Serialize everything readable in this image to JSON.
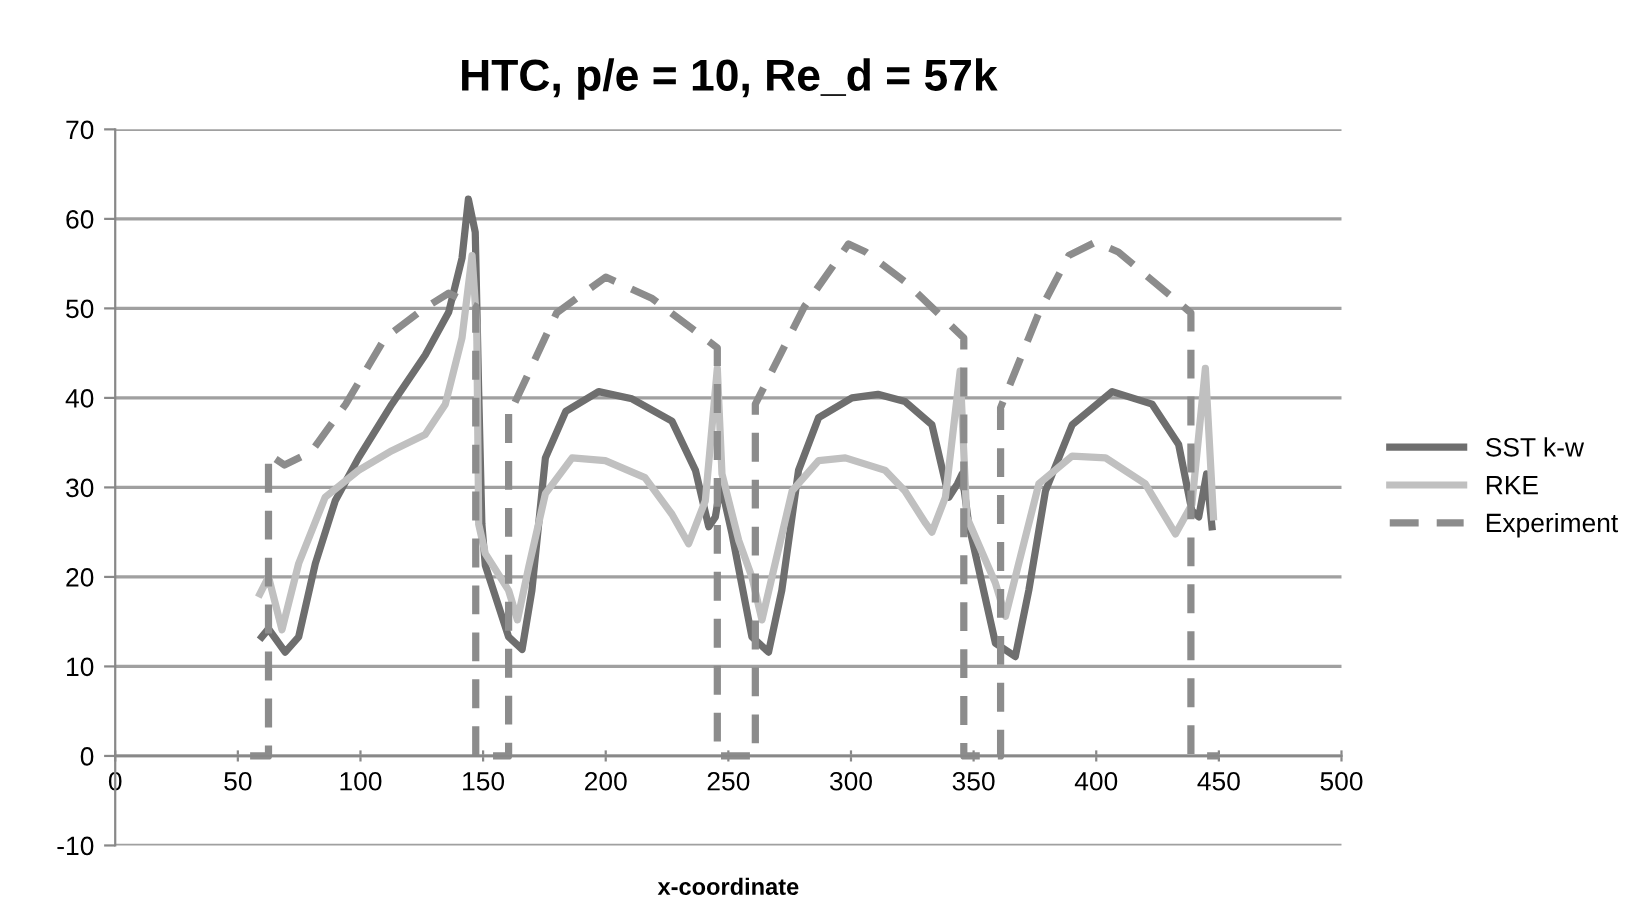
{
  "chart_data": {
    "type": "line",
    "title": "HTC, p/e = 10, Re_d = 57k",
    "xlabel": "x-coordinate",
    "xlim": [
      0,
      500
    ],
    "xticks": [
      0,
      50,
      100,
      150,
      200,
      250,
      300,
      350,
      400,
      450,
      500
    ],
    "ylim": [
      -10,
      70
    ],
    "yticks": [
      -10,
      0,
      10,
      20,
      30,
      40,
      50,
      60,
      70
    ],
    "grid": "y",
    "legend": "right",
    "marker": "none",
    "series": [
      {
        "name": "SST k-w",
        "color": "#6e6e6e",
        "line_style": "solid",
        "x": [
          59.8,
          62.5,
          69.3,
          74.8,
          81.6,
          89.7,
          99.2,
          112.8,
          126.4,
          136,
          141.4,
          144,
          146.8,
          148.2,
          149.5,
          150.9,
          160.4,
          165.9,
          169.9,
          175.4,
          183.7,
          197.1,
          210.7,
          227,
          236.6,
          242,
          244.7,
          246.9,
          251.5,
          259.6,
          266.4,
          271.8,
          278.6,
          286.8,
          300.4,
          311,
          322,
          333,
          339.9,
          343.4,
          345.3,
          348,
          358.9,
          367,
          372.5,
          379.3,
          390.2,
          406.5,
          422.8,
          433.6,
          439,
          441.8,
          445,
          447.2
        ],
        "values": [
          13.3,
          14.2,
          11.6,
          13.3,
          21.5,
          28.5,
          33.3,
          39.3,
          44.8,
          49.6,
          55.6,
          62.2,
          58.5,
          40.7,
          25.9,
          21.3,
          13.3,
          11.9,
          18.5,
          33.3,
          38.5,
          40.7,
          39.9,
          37.4,
          31.9,
          25.6,
          26.7,
          30.4,
          24.8,
          13.3,
          11.6,
          18.5,
          31.9,
          37.8,
          40,
          40.4,
          39.6,
          37,
          28.9,
          30.4,
          31.5,
          25.9,
          12.6,
          11.1,
          18.5,
          29.6,
          37,
          40.7,
          39.3,
          34.8,
          27.4,
          26.7,
          31.5,
          25.6
        ]
      },
      {
        "name": "RKE",
        "color": "#c0c0c0",
        "line_style": "solid",
        "x": [
          59,
          62.5,
          68,
          74.8,
          85.6,
          99.2,
          112.8,
          126.4,
          134.6,
          141.4,
          145.5,
          147.4,
          148.2,
          150.9,
          160.4,
          164,
          168.6,
          175.4,
          186.3,
          199.8,
          216,
          227,
          233.8,
          240.6,
          245.5,
          247.4,
          254.2,
          259.6,
          263.7,
          267.8,
          276,
          286.8,
          297.7,
          314,
          322,
          330.4,
          333,
          338.5,
          344.5,
          347.2,
          358.9,
          363,
          368.4,
          376.6,
          390.2,
          403.8,
          420,
          432.3,
          439,
          444.5,
          447.8
        ],
        "values": [
          18.1,
          20,
          14.1,
          21.5,
          28.9,
          31.9,
          34.1,
          35.9,
          39.3,
          46.7,
          55.9,
          48.1,
          25.9,
          22.6,
          18.5,
          15.2,
          21.1,
          29.3,
          33.3,
          33,
          31.1,
          27,
          23.7,
          28.5,
          43.3,
          31.5,
          24.1,
          20,
          15.2,
          20,
          29.6,
          33,
          33.3,
          31.9,
          29.6,
          26,
          25,
          28.9,
          43,
          26.7,
          19.3,
          15.6,
          21.5,
          30.4,
          33.5,
          33.3,
          30.4,
          24.8,
          28.1,
          43.3,
          26.7
        ]
      },
      {
        "name": "Experiment",
        "color": "#8c8c8c",
        "line_style": "dashed",
        "x": [
          55,
          62.5,
          62.5,
          69,
          80,
          94,
          110,
          126,
          136,
          147,
          147,
          160.4,
          160.4,
          163,
          180,
          200,
          219,
          245.5,
          245.5,
          261,
          261,
          281,
          299,
          306,
          322,
          346,
          346,
          361,
          361,
          376.6,
          388.8,
          399.7,
          409,
          438.6,
          438.6,
          450
        ],
        "values": [
          0,
          0,
          33.7,
          32.5,
          34,
          39.3,
          46.7,
          50,
          51.7,
          50.2,
          0,
          0,
          39.5,
          39.5,
          49.5,
          53.5,
          51.1,
          45.6,
          0,
          0,
          39.3,
          50.2,
          57.2,
          56.3,
          53,
          46.7,
          0,
          0,
          38.9,
          49.5,
          55.9,
          57.4,
          56.3,
          49.5,
          0,
          0
        ]
      }
    ]
  }
}
